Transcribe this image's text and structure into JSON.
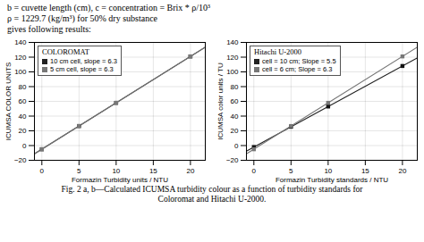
{
  "subtitle": [
    "b = cuvette length (cm),  c = concentration = Brix * ρ/10³",
    "ρ = 1229.7 (kg/m³) for 50% dry substance",
    "gives following results:"
  ],
  "caption": "Fig. 2 a, b—Calculated ICUMSA turbidity colour as a function of turbidity standards for\nColoromat and Hitachi U-2000.",
  "chart_data": [
    {
      "type": "line",
      "title": "COLOROMAT",
      "x_label": "Formazin Turbidity units / NTU",
      "y_label": "ICUMSA COLOR UNITS",
      "xlim": [
        -1,
        22
      ],
      "ylim": [
        -20,
        140
      ],
      "xticks": [
        0,
        5,
        10,
        15,
        20
      ],
      "yticks": [
        -20,
        0,
        20,
        40,
        60,
        80,
        100,
        120,
        140
      ],
      "grid": true,
      "legend": "upper left",
      "series": [
        {
          "name": "10 cm cell, slope = 6.3",
          "type": "line",
          "color": "#222222",
          "x": [
            -1,
            22
          ],
          "values": [
            -11.3,
            133.6
          ]
        },
        {
          "name": "5 cm cell, slope = 6.3",
          "type": "line",
          "color": "#777777",
          "x": [
            -1,
            22
          ],
          "values": [
            -11.3,
            133.6
          ]
        },
        {
          "type": "scatter",
          "marker": "square",
          "color": "#111111",
          "x": [
            0,
            5,
            10,
            20
          ],
          "values": [
            -5,
            26.5,
            58,
            121
          ]
        },
        {
          "type": "scatter",
          "marker": "square",
          "color": "#777777",
          "x": [
            0,
            5,
            10,
            20
          ],
          "values": [
            -5,
            26.5,
            58,
            121
          ]
        }
      ]
    },
    {
      "type": "line",
      "title": "Hitachi U-2000",
      "x_label": "Formazin Turbidity standards / NTU",
      "y_label": "ICUMSA color units / TU",
      "xlim": [
        -1,
        22
      ],
      "ylim": [
        -20,
        140
      ],
      "xticks": [
        0,
        5,
        10,
        15,
        20
      ],
      "yticks": [
        -20,
        0,
        20,
        40,
        60,
        80,
        100,
        120,
        140
      ],
      "grid": true,
      "legend": "upper left",
      "series": [
        {
          "name": "cell = 10 cm; Slope = 5.5",
          "type": "line",
          "color": "#222222",
          "x": [
            -1,
            22
          ],
          "values": [
            -7.5,
            119
          ]
        },
        {
          "name": "cell = 6 cm; Slope = 6.3",
          "type": "line",
          "color": "#777777",
          "x": [
            -1,
            22
          ],
          "values": [
            -11.3,
            133.6
          ]
        },
        {
          "type": "scatter",
          "marker": "square",
          "color": "#111111",
          "x": [
            0,
            5,
            10,
            20
          ],
          "values": [
            -2,
            25.5,
            53,
            108
          ]
        },
        {
          "type": "scatter",
          "marker": "square",
          "color": "#777777",
          "x": [
            0,
            5,
            10,
            20
          ],
          "values": [
            -5,
            26.5,
            58,
            121
          ]
        }
      ]
    }
  ]
}
